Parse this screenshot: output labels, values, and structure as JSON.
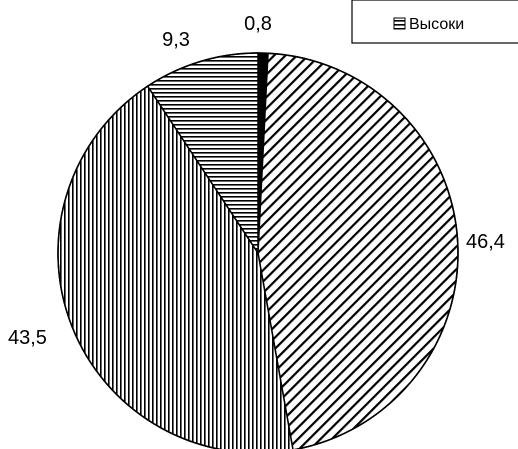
{
  "chart_data": {
    "type": "pie",
    "title": "",
    "start_angle_deg": 0,
    "direction": "clockwise",
    "slices": [
      {
        "value": 0.8,
        "label": "0,8",
        "pattern": "solid-black"
      },
      {
        "value": 46.4,
        "label": "46,4",
        "pattern": "diagonal"
      },
      {
        "value": 43.5,
        "label": "43,5",
        "pattern": "vertical"
      },
      {
        "value": 9.3,
        "label": "9,3",
        "pattern": "horizontal"
      }
    ],
    "legend": {
      "placement": "top-right",
      "visible_entries": [
        {
          "label": "Высоки",
          "pattern": "horizontal"
        }
      ]
    }
  }
}
